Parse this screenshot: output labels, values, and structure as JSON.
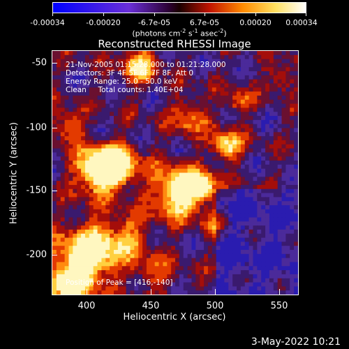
{
  "colorbar": {
    "tick_labels": [
      "-0.00034",
      "-0.00020",
      "-6.7e-05",
      "6.7e-05",
      "0.00020",
      "0.00034"
    ],
    "units_prefix": "(photons cm",
    "units_exp1": "-2",
    "units_mid1": " s",
    "units_exp2": "-1",
    "units_mid2": " asec",
    "units_exp3": "-2",
    "units_suffix": ")",
    "stops": [
      "#0000ff",
      "#6a2fd8",
      "#2b0032",
      "#1a0000",
      "#c21400",
      "#ff8a00",
      "#ffe060",
      "#ffffff"
    ]
  },
  "plot": {
    "title": "Reconstructed RHESSI Image",
    "info_lines": [
      "21-Nov-2005 01:15:28.000 to 01:21:28.000",
      "Detectors: 3F 4F 5F 6F 7F 8F, Att 0",
      "Energy Range: 25.0 - 50.0 keV",
      "Clean     Total counts: 1.40E+04"
    ],
    "peak_label": "Position of Peak = [416,-140]",
    "x_axis_label": "Heliocentric X (arcsec)",
    "y_axis_label": "Heliocentric Y (arcsec)",
    "x_ticks": [
      "400",
      "450",
      "500",
      "550"
    ],
    "y_ticks": [
      "-50",
      "-100",
      "-150",
      "-200"
    ]
  },
  "footer": {
    "date_stamp": "3-May-2022 10:21"
  }
}
